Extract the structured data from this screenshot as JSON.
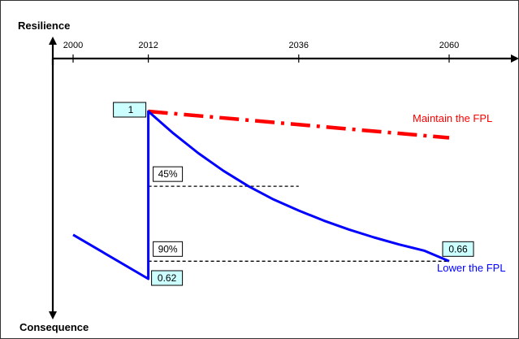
{
  "chart_data": {
    "type": "line",
    "y_axis_title": "Resilience",
    "y_axis_bottom_label": "Consequence",
    "x_ticks": [
      {
        "value": 2000,
        "label": "2000"
      },
      {
        "value": 2012,
        "label": "2012"
      },
      {
        "value": 2036,
        "label": "2036"
      },
      {
        "value": 2060,
        "label": "2060"
      }
    ],
    "xlim": [
      1995,
      2068
    ],
    "ylim": [
      0.55,
      1.05
    ],
    "series": [
      {
        "name": "Maintain the FPL",
        "color": "#ff0000",
        "style": "dash-dot",
        "points": [
          [
            2012,
            1.0
          ],
          [
            2060,
            0.94
          ]
        ]
      },
      {
        "name": "Lower the FPL",
        "color": "#0000ff",
        "style": "solid",
        "points": [
          [
            2000,
            0.72
          ],
          [
            2012,
            0.62
          ],
          [
            2012,
            1.0
          ],
          [
            2016,
            0.95
          ],
          [
            2020,
            0.905
          ],
          [
            2024,
            0.865
          ],
          [
            2028,
            0.83
          ],
          [
            2032,
            0.8
          ],
          [
            2036,
            0.775
          ],
          [
            2040,
            0.752
          ],
          [
            2044,
            0.732
          ],
          [
            2048,
            0.714
          ],
          [
            2052,
            0.698
          ],
          [
            2056,
            0.684
          ],
          [
            2060,
            0.66
          ]
        ]
      }
    ],
    "annotations": [
      {
        "label": "1",
        "x": 2012,
        "y": 1.0,
        "fill": "#ccffff",
        "anchor": "left"
      },
      {
        "label": "0.62",
        "x": 2012,
        "y": 0.62,
        "fill": "#ccffff",
        "anchor": "right"
      },
      {
        "label": "0.66",
        "x": 2060,
        "y": 0.66,
        "fill": "#ccffff",
        "anchor": "above"
      },
      {
        "label": "45%",
        "x": 2012,
        "y": 0.83,
        "fill": "#ffffff",
        "anchor": "right-above"
      },
      {
        "label": "90%",
        "x": 2012,
        "y": 0.66,
        "fill": "#ffffff",
        "anchor": "right-above"
      }
    ],
    "reference_lines": [
      {
        "name": "45%",
        "y": 0.83,
        "x_from": 2012,
        "x_to": 2036
      },
      {
        "name": "90%",
        "y": 0.66,
        "x_from": 2012,
        "x_to": 2060
      }
    ],
    "grid": false,
    "legend": "inline"
  }
}
